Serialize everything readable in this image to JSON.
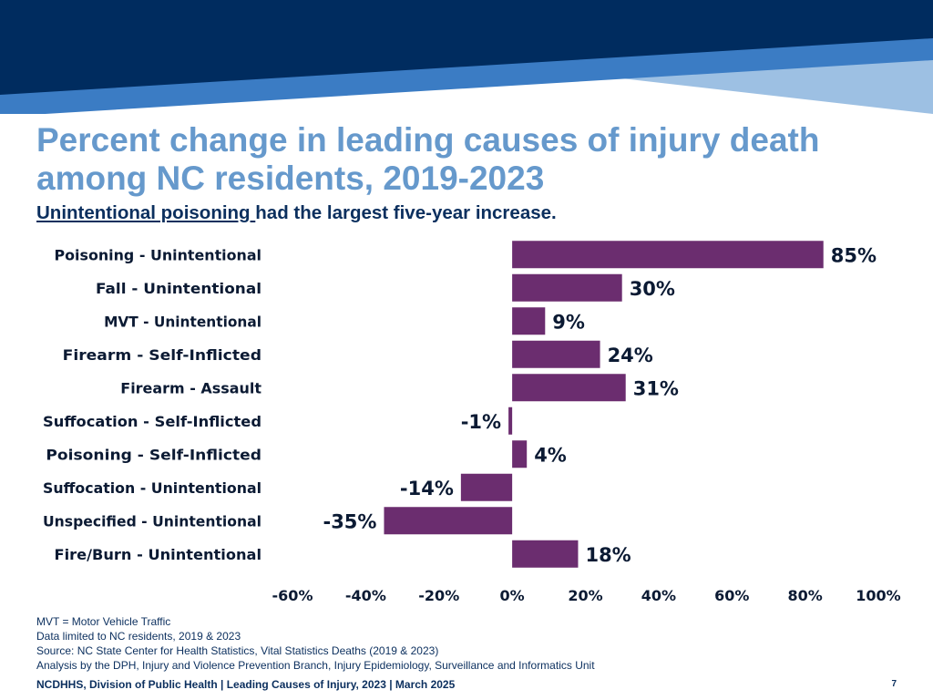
{
  "colors": {
    "bar": "#6b2d6f",
    "banner_dark": "#002c5f",
    "banner_mid": "#3b7cc4",
    "banner_light": "#9dc0e3",
    "title": "#6699cc",
    "text": "#0b2f5e"
  },
  "title": {
    "line1": "Percent change in leading causes of injury death",
    "line2": "among NC residents, 2019-2023"
  },
  "subtitle": {
    "underlined": "Unintentional poisoning ",
    "rest": "had the largest five-year increase."
  },
  "chart_data": {
    "type": "bar",
    "orientation": "horizontal",
    "categories": [
      "Poisoning - Unintentional",
      "Fall - Unintentional",
      "MVT - Unintentional",
      "Firearm - Self-Inflicted",
      "Firearm - Assault",
      "Suffocation - Self-Inflicted",
      "Poisoning - Self-Inflicted",
      "Suffocation - Unintentional",
      "Unspecified - Unintentional",
      "Fire/Burn - Unintentional"
    ],
    "values": [
      85,
      30,
      9,
      24,
      31,
      -1,
      4,
      -14,
      -35,
      18
    ],
    "data_labels": [
      "85%",
      "30%",
      "9%",
      "24%",
      "31%",
      "-1%",
      "4%",
      "-14%",
      "-35%",
      "18%"
    ],
    "xlim": [
      -60,
      100
    ],
    "x_ticks": [
      -60,
      -40,
      -20,
      0,
      20,
      40,
      60,
      80,
      100
    ],
    "x_tick_labels": [
      "-60%",
      "-40%",
      "-20%",
      "0%",
      "20%",
      "40%",
      "60%",
      "80%",
      "100%"
    ],
    "grid": false,
    "legend": "none"
  },
  "footnotes": [
    "MVT = Motor Vehicle Traffic",
    "Data limited to NC residents, 2019 & 2023",
    "Source: NC State Center for Health Statistics, Vital Statistics Deaths (2019 & 2023)",
    "Analysis by the DPH, Injury and Violence Prevention Branch, Injury Epidemiology, Surveillance and Informatics Unit"
  ],
  "footer": "NCDHHS, Division of Public Health | Leading Causes of Injury, 2023 | March 2025",
  "page_number": "7"
}
